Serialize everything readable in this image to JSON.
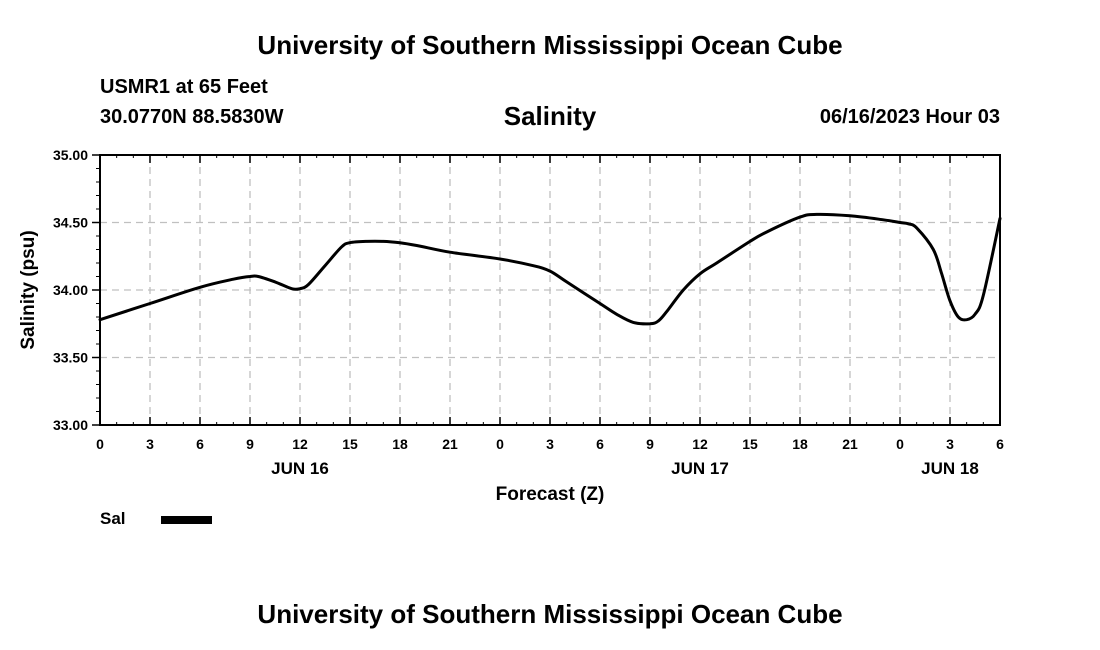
{
  "header": {
    "title": "University of Southern Mississippi Ocean Cube",
    "station_name": "USMR1 at 65 Feet",
    "coordinates": "30.0770N  88.5830W",
    "chart_title": "Salinity",
    "run_time": "06/16/2023 Hour 03"
  },
  "footer": {
    "title": "University of Southern Mississippi Ocean Cube"
  },
  "legend": {
    "label": "Sal"
  },
  "colors": {
    "line": "#000000",
    "grid": "#c0c0c0",
    "axis": "#000000",
    "background": "#ffffff"
  },
  "chart_data": {
    "type": "line",
    "title": "Salinity",
    "xlabel": "Forecast (Z)",
    "ylabel": "Salinity (psu)",
    "xlim": [
      0,
      54
    ],
    "ylim": [
      33.0,
      35.0
    ],
    "grid": true,
    "y_ticks": [
      "33.00",
      "33.50",
      "34.00",
      "34.50",
      "35.00"
    ],
    "y_tick_values": [
      33.0,
      33.5,
      34.0,
      34.5,
      35.0
    ],
    "x_tick_positions": [
      0,
      3,
      6,
      9,
      12,
      15,
      18,
      21,
      24,
      27,
      30,
      33,
      36,
      39,
      42,
      45,
      48,
      51,
      54
    ],
    "x_tick_labels": [
      "0",
      "3",
      "6",
      "9",
      "12",
      "15",
      "18",
      "21",
      "0",
      "3",
      "6",
      "9",
      "12",
      "15",
      "18",
      "21",
      "0",
      "3",
      "6"
    ],
    "day_labels": [
      {
        "label": "JUN 16",
        "at": 12
      },
      {
        "label": "JUN 17",
        "at": 36
      },
      {
        "label": "JUN 18",
        "at": 51
      }
    ],
    "series": [
      {
        "name": "Sal",
        "x": [
          0,
          3,
          6,
          8,
          9,
          9.5,
          10.5,
          11.5,
          12,
          12.5,
          13.5,
          14.5,
          15,
          16,
          17,
          18,
          19,
          21,
          24,
          26,
          27,
          28,
          30,
          31,
          32,
          33,
          33.5,
          34,
          35,
          36,
          37,
          39,
          40,
          42,
          43,
          45,
          47,
          48,
          48.5,
          49,
          50,
          50.5,
          51,
          51.5,
          52,
          52.5,
          53,
          54
        ],
        "values": [
          33.78,
          33.9,
          34.02,
          34.08,
          34.1,
          34.1,
          34.06,
          34.01,
          34.01,
          34.04,
          34.18,
          34.32,
          34.35,
          34.36,
          34.36,
          34.35,
          34.33,
          34.28,
          34.23,
          34.18,
          34.14,
          34.06,
          33.9,
          33.82,
          33.76,
          33.75,
          33.77,
          33.84,
          34.0,
          34.12,
          34.2,
          34.36,
          34.43,
          34.54,
          34.56,
          34.55,
          34.52,
          34.5,
          34.49,
          34.46,
          34.3,
          34.12,
          33.92,
          33.8,
          33.78,
          33.82,
          33.96,
          34.53
        ]
      }
    ]
  }
}
